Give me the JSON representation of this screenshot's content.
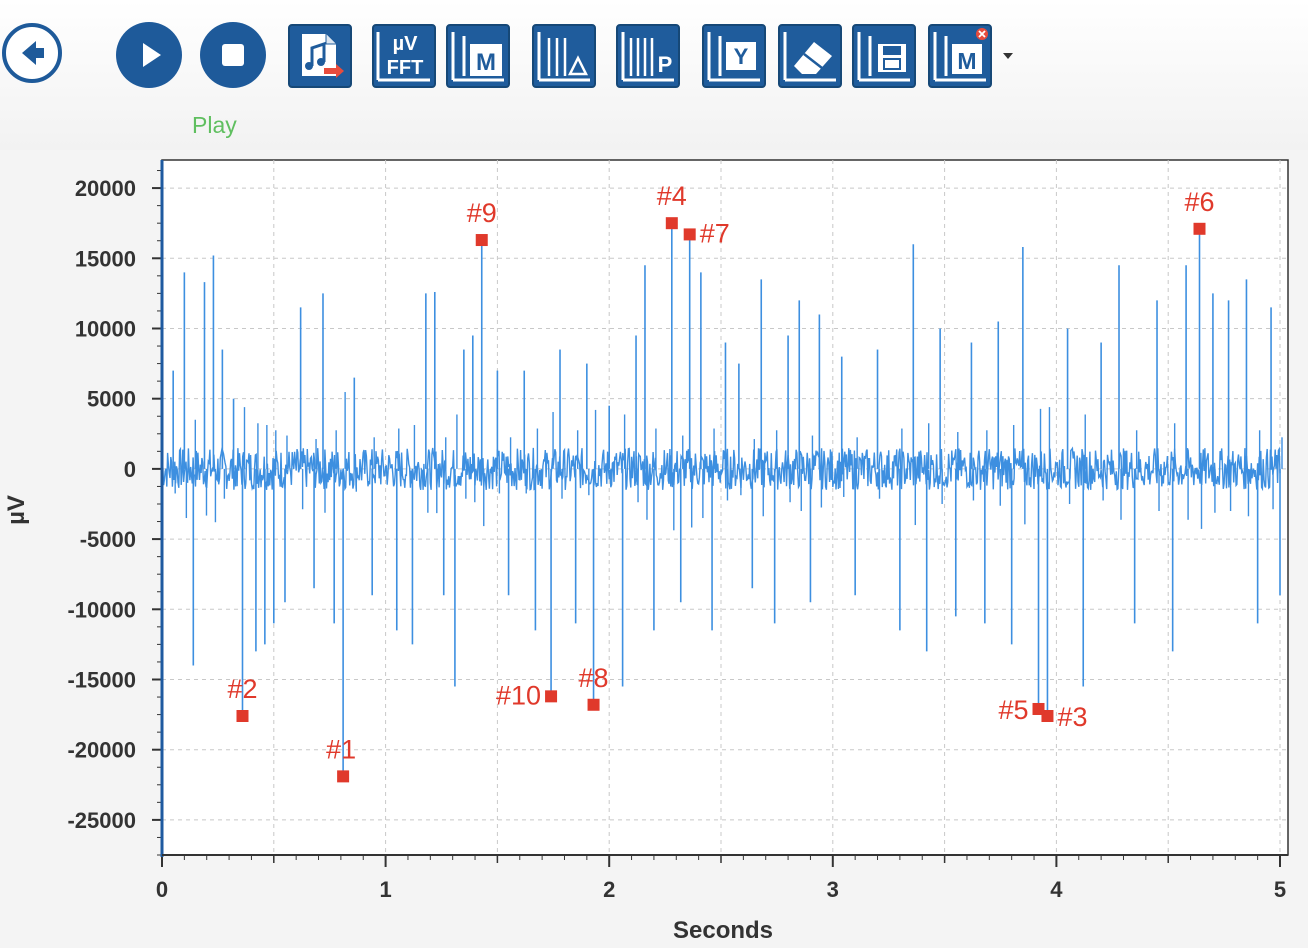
{
  "toolbar": {
    "buttons": [
      {
        "name": "back",
        "icon": "back-arrow-icon"
      },
      {
        "name": "play",
        "icon": "play-icon",
        "label": "Play"
      },
      {
        "name": "stop",
        "icon": "stop-icon"
      },
      {
        "name": "export-audio",
        "icon": "music-export-icon"
      },
      {
        "name": "fft",
        "icon": "fft-icon",
        "text_top": "µV",
        "text_bottom": "FFT"
      },
      {
        "name": "marker",
        "icon": "marker-icon",
        "text": "M"
      },
      {
        "name": "delta",
        "icon": "delta-cursor-icon",
        "text": "Δ"
      },
      {
        "name": "peak",
        "icon": "peak-icon",
        "text": "P"
      },
      {
        "name": "y-axis",
        "icon": "y-axis-icon",
        "text": "Y"
      },
      {
        "name": "eraser",
        "icon": "eraser-icon"
      },
      {
        "name": "save",
        "icon": "save-icon"
      },
      {
        "name": "remove-markers",
        "icon": "marker-remove-icon",
        "text": "M"
      }
    ],
    "play_label": "Play"
  },
  "colors": {
    "accent": "#1f5c9c",
    "signal": "#3d8fe0",
    "marker": "#e0392b",
    "play_label": "#5fbf5f"
  },
  "chart_data": {
    "type": "line",
    "xlabel": "Seconds",
    "ylabel": "µV",
    "xlim": [
      0,
      5
    ],
    "ylim": [
      -27500,
      22000
    ],
    "xticks": [
      0,
      1,
      2,
      3,
      4,
      5
    ],
    "yticks": [
      20000,
      15000,
      10000,
      5000,
      0,
      -5000,
      -10000,
      -15000,
      -20000,
      -25000
    ],
    "ytick_labels": [
      "20000",
      "15000",
      "10000",
      "5000",
      "0",
      "-5000",
      "-10000",
      "-15000",
      "-20000",
      "-25000"
    ],
    "xtick_labels": [
      "0",
      "1",
      "2",
      "3",
      "4",
      "5"
    ],
    "grid": true,
    "baseline_noise_uV": 1500,
    "spikes": [
      {
        "x": 0.05,
        "y": 7000
      },
      {
        "x": 0.1,
        "y": 14000
      },
      {
        "x": 0.14,
        "y": -14000
      },
      {
        "x": 0.19,
        "y": 13300
      },
      {
        "x": 0.23,
        "y": 15200
      },
      {
        "x": 0.27,
        "y": 8500
      },
      {
        "x": 0.32,
        "y": 5000
      },
      {
        "x": 0.36,
        "y": -17600
      },
      {
        "x": 0.42,
        "y": -13000
      },
      {
        "x": 0.46,
        "y": -12500
      },
      {
        "x": 0.5,
        "y": -11000
      },
      {
        "x": 0.55,
        "y": -9500
      },
      {
        "x": 0.62,
        "y": 11500
      },
      {
        "x": 0.68,
        "y": -8500
      },
      {
        "x": 0.72,
        "y": 12500
      },
      {
        "x": 0.77,
        "y": -11000
      },
      {
        "x": 0.81,
        "y": -21900
      },
      {
        "x": 0.86,
        "y": 6500
      },
      {
        "x": 0.94,
        "y": -9000
      },
      {
        "x": 1.05,
        "y": -11500
      },
      {
        "x": 1.12,
        "y": -12500
      },
      {
        "x": 1.18,
        "y": 12500
      },
      {
        "x": 1.22,
        "y": 12600
      },
      {
        "x": 1.26,
        "y": -9000
      },
      {
        "x": 1.31,
        "y": -15500
      },
      {
        "x": 1.35,
        "y": 8500
      },
      {
        "x": 1.39,
        "y": 9500
      },
      {
        "x": 1.43,
        "y": 16300
      },
      {
        "x": 1.5,
        "y": 7000
      },
      {
        "x": 1.55,
        "y": -9000
      },
      {
        "x": 1.62,
        "y": 7000
      },
      {
        "x": 1.67,
        "y": -11500
      },
      {
        "x": 1.74,
        "y": -16200
      },
      {
        "x": 1.78,
        "y": 8500
      },
      {
        "x": 1.85,
        "y": -11000
      },
      {
        "x": 1.9,
        "y": 7500
      },
      {
        "x": 1.93,
        "y": -16800
      },
      {
        "x": 2.0,
        "y": 4500
      },
      {
        "x": 2.06,
        "y": -15500
      },
      {
        "x": 2.12,
        "y": 9500
      },
      {
        "x": 2.16,
        "y": 14500
      },
      {
        "x": 2.2,
        "y": -11500
      },
      {
        "x": 2.28,
        "y": 17500
      },
      {
        "x": 2.32,
        "y": -9500
      },
      {
        "x": 2.36,
        "y": 16700
      },
      {
        "x": 2.41,
        "y": 14000
      },
      {
        "x": 2.46,
        "y": -11500
      },
      {
        "x": 2.52,
        "y": 9000
      },
      {
        "x": 2.58,
        "y": 7500
      },
      {
        "x": 2.64,
        "y": -8500
      },
      {
        "x": 2.68,
        "y": 13500
      },
      {
        "x": 2.74,
        "y": -11000
      },
      {
        "x": 2.8,
        "y": 9500
      },
      {
        "x": 2.85,
        "y": 12000
      },
      {
        "x": 2.9,
        "y": -9500
      },
      {
        "x": 2.94,
        "y": 11000
      },
      {
        "x": 3.04,
        "y": 8000
      },
      {
        "x": 3.1,
        "y": -9000
      },
      {
        "x": 3.2,
        "y": 8500
      },
      {
        "x": 3.3,
        "y": -11500
      },
      {
        "x": 3.36,
        "y": 16000
      },
      {
        "x": 3.42,
        "y": -13000
      },
      {
        "x": 3.48,
        "y": 10000
      },
      {
        "x": 3.55,
        "y": -10500
      },
      {
        "x": 3.62,
        "y": 9000
      },
      {
        "x": 3.68,
        "y": -11000
      },
      {
        "x": 3.74,
        "y": 10500
      },
      {
        "x": 3.8,
        "y": -12500
      },
      {
        "x": 3.85,
        "y": 15800
      },
      {
        "x": 3.92,
        "y": -17100
      },
      {
        "x": 3.96,
        "y": -17600
      },
      {
        "x": 4.05,
        "y": 10000
      },
      {
        "x": 4.12,
        "y": -15500
      },
      {
        "x": 4.2,
        "y": 9000
      },
      {
        "x": 4.28,
        "y": 14500
      },
      {
        "x": 4.35,
        "y": -11000
      },
      {
        "x": 4.45,
        "y": 12000
      },
      {
        "x": 4.52,
        "y": -13000
      },
      {
        "x": 4.58,
        "y": 14500
      },
      {
        "x": 4.64,
        "y": 17100
      },
      {
        "x": 4.7,
        "y": 12500
      },
      {
        "x": 4.77,
        "y": 12000
      },
      {
        "x": 4.85,
        "y": 13500
      },
      {
        "x": 4.9,
        "y": -11000
      },
      {
        "x": 4.96,
        "y": 11500
      },
      {
        "x": 5.0,
        "y": -9000
      }
    ],
    "markers": [
      {
        "label": "#1",
        "x": 0.81,
        "y": -21900
      },
      {
        "label": "#2",
        "x": 0.36,
        "y": -17600
      },
      {
        "label": "#3",
        "x": 3.96,
        "y": -17600
      },
      {
        "label": "#4",
        "x": 2.28,
        "y": 17500
      },
      {
        "label": "#5",
        "x": 3.92,
        "y": -17100
      },
      {
        "label": "#6",
        "x": 4.64,
        "y": 17100
      },
      {
        "label": "#7",
        "x": 2.36,
        "y": 16700
      },
      {
        "label": "#8",
        "x": 1.93,
        "y": -16800
      },
      {
        "label": "#9",
        "x": 1.43,
        "y": 16300
      },
      {
        "label": "#10",
        "x": 1.74,
        "y": -16200
      }
    ]
  }
}
